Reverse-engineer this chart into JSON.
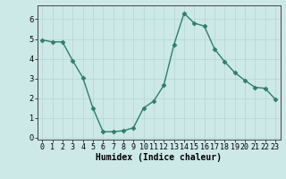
{
  "x": [
    0,
    1,
    2,
    3,
    4,
    5,
    6,
    7,
    8,
    9,
    10,
    11,
    12,
    13,
    14,
    15,
    16,
    17,
    18,
    19,
    20,
    21,
    22,
    23
  ],
  "y": [
    4.95,
    4.85,
    4.85,
    3.9,
    3.05,
    1.5,
    0.3,
    0.3,
    0.35,
    0.5,
    1.5,
    1.85,
    2.65,
    4.7,
    6.3,
    5.8,
    5.65,
    4.5,
    3.85,
    3.3,
    2.9,
    2.55,
    2.5,
    1.95
  ],
  "line_color": "#2e7d6e",
  "marker": "D",
  "markersize": 2.5,
  "linewidth": 1.0,
  "bg_color": "#cce9e7",
  "grid_color": "#b8d8d6",
  "xlabel": "Humidex (Indice chaleur)",
  "xlabel_fontsize": 7,
  "tick_fontsize": 6,
  "ylim": [
    -0.1,
    6.7
  ],
  "xlim": [
    -0.5,
    23.5
  ],
  "yticks": [
    0,
    1,
    2,
    3,
    4,
    5,
    6
  ],
  "xticks": [
    0,
    1,
    2,
    3,
    4,
    5,
    6,
    7,
    8,
    9,
    10,
    11,
    12,
    13,
    14,
    15,
    16,
    17,
    18,
    19,
    20,
    21,
    22,
    23
  ],
  "xtick_labels": [
    "0",
    "1",
    "2",
    "3",
    "4",
    "5",
    "6",
    "7",
    "8",
    "9",
    "10",
    "11",
    "12",
    "13",
    "14",
    "15",
    "16",
    "17",
    "18",
    "19",
    "20",
    "21",
    "22",
    "23"
  ]
}
